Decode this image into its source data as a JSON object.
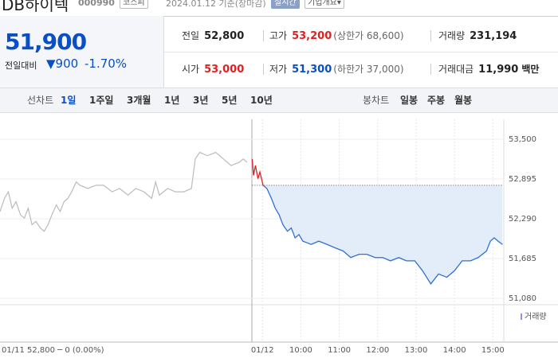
{
  "header": {
    "name": "DB하이텍",
    "code": "000990",
    "market": "코스피",
    "date": "2024.01.12 기준(장마감)",
    "realtime": "실시간",
    "company_info": "기업개요"
  },
  "quote": {
    "price": "51,900",
    "change_label": "전일대비",
    "change": "900",
    "change_pct": "-1.70%"
  },
  "summary": [
    [
      {
        "label": "전일",
        "value": "52,800"
      },
      {
        "label": "고가",
        "value": "53,200",
        "note": "(상한가 68,600)"
      },
      {
        "label": "거래량",
        "value": "231,194"
      }
    ],
    [
      {
        "label": "시가",
        "value": "53,000"
      },
      {
        "label": "저가",
        "value": "51,300",
        "note": "(하한가 37,000)"
      },
      {
        "label": "거래대금",
        "value": "11,990",
        "unit": "백만"
      }
    ]
  ],
  "toolbar": {
    "line_label": "선차트",
    "line_periods": [
      "1일",
      "1주일",
      "3개월",
      "1년",
      "3년",
      "5년",
      "10년"
    ],
    "candle_label": "봉차트",
    "candle_periods": [
      "일봉",
      "주봉",
      "월봉"
    ]
  },
  "chart_data": {
    "type": "line",
    "annotation": "01/11  52,800 ─ 0 (0.00%)",
    "volume_label": "거래량",
    "baseline": 52800,
    "baseline_color": "#555555",
    "fill_color": "#e3ecf9",
    "xlim": [
      -410,
      377
    ],
    "ylim": [
      51080,
      53500
    ],
    "xticks": [
      {
        "value": 0,
        "label": "01/12"
      },
      {
        "value": 60,
        "label": "10:00"
      },
      {
        "value": 120,
        "label": "11:00"
      },
      {
        "value": 180,
        "label": "12:00"
      },
      {
        "value": 240,
        "label": "13:00"
      },
      {
        "value": 300,
        "label": "14:00"
      },
      {
        "value": 360,
        "label": "15:00"
      }
    ],
    "yticks": [
      {
        "value": 51080,
        "label": "51,080"
      },
      {
        "value": 51685,
        "label": "51,685"
      },
      {
        "value": 52290,
        "label": "52,290"
      },
      {
        "value": 52895,
        "label": "52,895"
      },
      {
        "value": 53500,
        "label": "53,500"
      }
    ],
    "grid": true,
    "series": [
      {
        "color": "#bbbbbb",
        "x": [
          -410,
          -403,
          -397,
          -391,
          -385,
          -378,
          -372,
          -366,
          -360,
          -354,
          -347,
          -341,
          -335,
          -329,
          -322,
          -316,
          -310,
          -304,
          -298,
          -291,
          -285,
          -273,
          -260,
          -248,
          -235,
          -223,
          -210,
          -198,
          -185,
          -173,
          -167,
          -161,
          -148,
          -136,
          -123,
          -111,
          -105,
          -98,
          -86,
          -73,
          -61,
          -49,
          -36,
          -30,
          -24
        ],
        "values": [
          52400,
          52600,
          52700,
          52450,
          52550,
          52350,
          52300,
          52450,
          52200,
          52250,
          52150,
          52100,
          52200,
          52350,
          52500,
          52400,
          52550,
          52600,
          52700,
          52850,
          52800,
          52750,
          52800,
          52800,
          52700,
          52750,
          52650,
          52750,
          52700,
          52600,
          52850,
          52650,
          52750,
          52700,
          52700,
          52750,
          53200,
          53300,
          53250,
          53300,
          53200,
          53100,
          53150,
          53200,
          53150
        ]
      },
      {
        "color": "#2f6fd6",
        "up_color": "#e02020",
        "x": [
          -16,
          -14,
          -11,
          -7,
          -4,
          1,
          7,
          14,
          20,
          26,
          32,
          39,
          45,
          51,
          57,
          63,
          76,
          88,
          101,
          113,
          126,
          138,
          151,
          163,
          176,
          188,
          200,
          213,
          225,
          238,
          250,
          263,
          275,
          288,
          300,
          312,
          325,
          337,
          350,
          356,
          362,
          368,
          375
        ],
        "values": [
          53200,
          52950,
          53100,
          52900,
          53000,
          52800,
          52750,
          52600,
          52450,
          52350,
          52200,
          52100,
          52150,
          52000,
          52050,
          51950,
          51900,
          51950,
          51900,
          51850,
          51800,
          51700,
          51750,
          51750,
          51700,
          51700,
          51650,
          51700,
          51650,
          51650,
          51500,
          51300,
          51450,
          51400,
          51500,
          51650,
          51650,
          51700,
          51800,
          51950,
          52000,
          51950,
          51900
        ]
      }
    ]
  }
}
